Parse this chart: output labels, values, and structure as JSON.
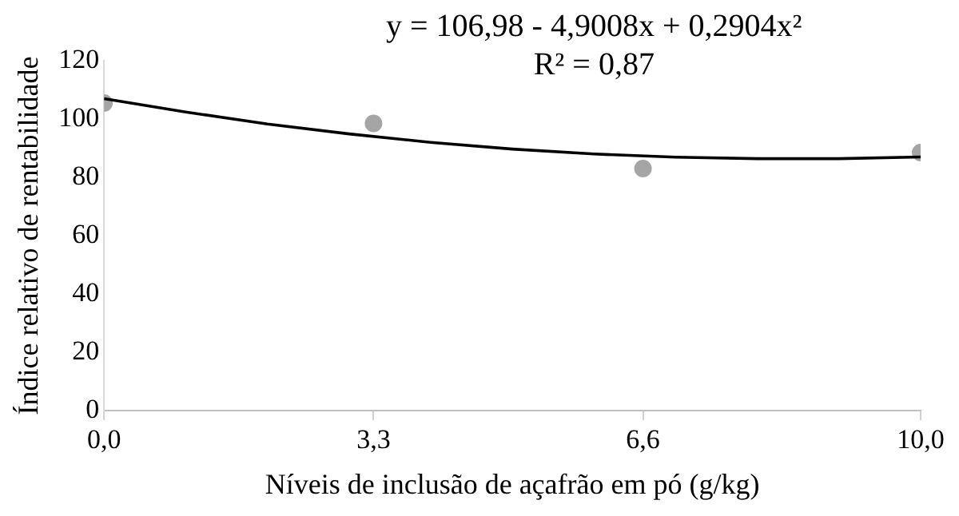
{
  "chart_data": {
    "type": "scatter",
    "xlabel": "Níveis de inclusão de açafrão em pó (g/kg)",
    "ylabel": "Índice relativo de rentabilidade",
    "annotations": [
      "y = 106,98 - 4,9008x + 0,2904x²",
      "R² = 0,87"
    ],
    "xlim": [
      0,
      10
    ],
    "xticks": [
      {
        "value": 0,
        "label": "0,0"
      },
      {
        "value": 3.3,
        "label": "3,3"
      },
      {
        "value": 6.6,
        "label": "6,6"
      },
      {
        "value": 10,
        "label": "10,0"
      }
    ],
    "ylim": [
      0,
      120
    ],
    "yticks": [
      0,
      20,
      40,
      60,
      80,
      100,
      120
    ],
    "grid": false,
    "legend": false,
    "series": [
      {
        "color": "#a5a5a5",
        "marker": "circle",
        "x": [
          0,
          3.3,
          6.6,
          10
        ],
        "values": [
          105.5,
          98.5,
          83,
          88.5
        ]
      },
      {
        "type": "line",
        "color": "#000000",
        "marker": "none",
        "line_style": "solid",
        "x": [
          0,
          1,
          2,
          3,
          4,
          5,
          6,
          7,
          8,
          9,
          10
        ],
        "values": [
          107,
          102.4,
          98.3,
          94.9,
          92,
          89.7,
          88,
          86.9,
          86.4,
          86.4,
          87
        ]
      }
    ]
  }
}
